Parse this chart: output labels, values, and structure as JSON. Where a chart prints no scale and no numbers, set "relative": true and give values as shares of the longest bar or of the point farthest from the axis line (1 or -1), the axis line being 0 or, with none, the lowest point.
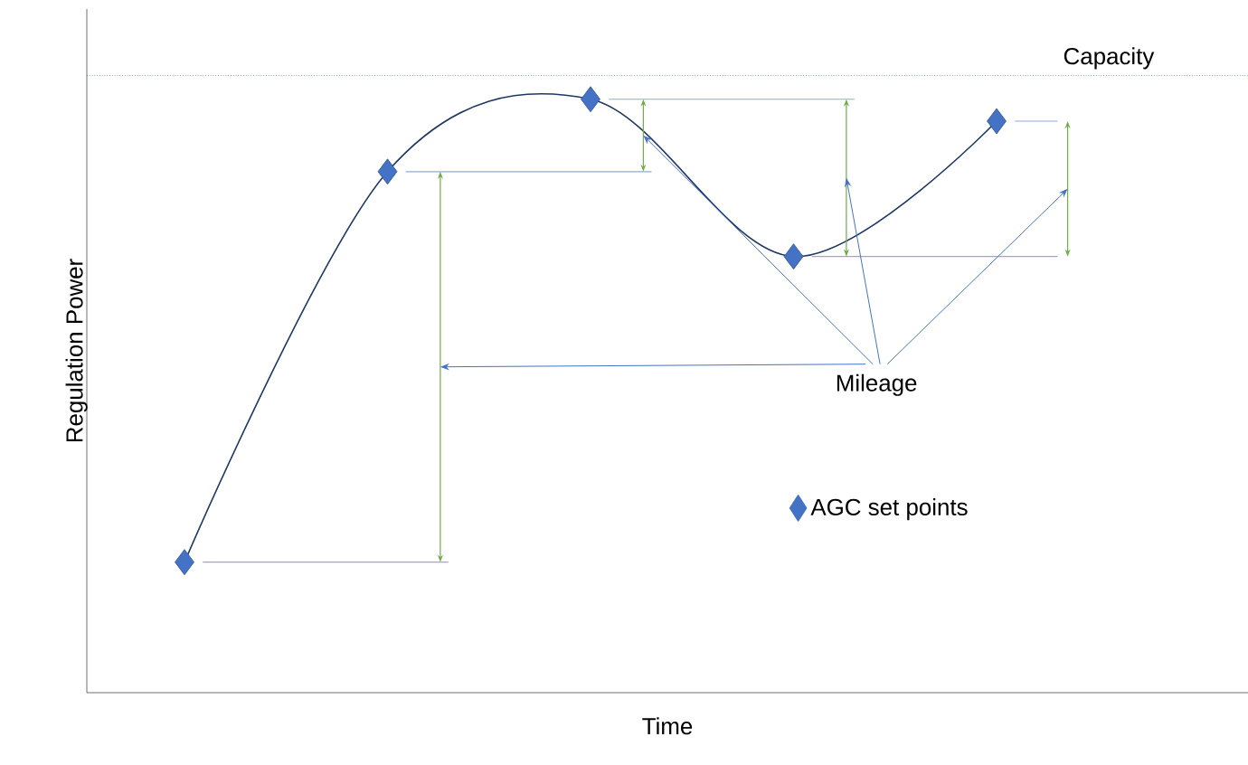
{
  "chart_data": {
    "type": "line",
    "xlabel": "Time",
    "ylabel": "Regulation Power",
    "relative": true,
    "legend": "right",
    "annotations": [
      "Mileage"
    ],
    "categories": [
      null,
      null,
      null,
      null,
      null
    ],
    "ref_lines": [
      {
        "axis": "y",
        "value": 1.04,
        "label": "Capacity",
        "color": "#4472c4",
        "line_style": "dotted"
      }
    ],
    "series": [
      {
        "name": "AGC set points",
        "color": "#1f3864",
        "marker": "diamond",
        "values": [
          0.22,
          0.878,
          1.0,
          0.735,
          0.963
        ]
      }
    ]
  }
}
